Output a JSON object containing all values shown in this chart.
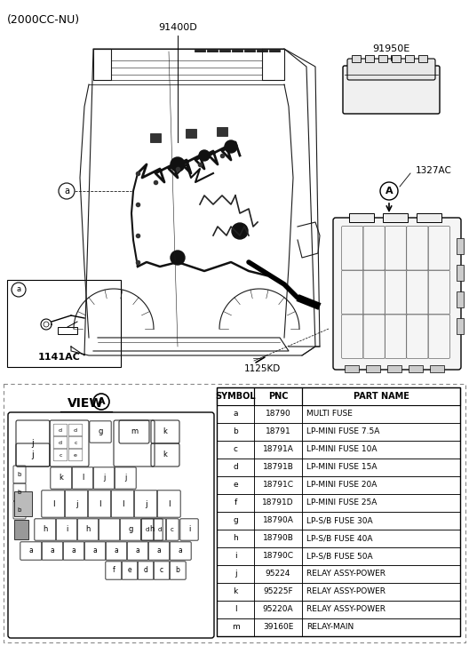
{
  "title_text": "(2000CC-NU)",
  "label_91400D": "91400D",
  "label_91950E": "91950E",
  "label_1327AC": "1327AC",
  "label_1125KD": "1125KD",
  "label_1141AC": "1141AC",
  "view_title": "VIEW",
  "table_headers": [
    "SYMBOL",
    "PNC",
    "PART NAME"
  ],
  "table_rows": [
    [
      "a",
      "18790",
      "MULTI FUSE"
    ],
    [
      "b",
      "18791",
      "LP-MINI FUSE 7.5A"
    ],
    [
      "c",
      "18791A",
      "LP-MINI FUSE 10A"
    ],
    [
      "d",
      "18791B",
      "LP-MINI FUSE 15A"
    ],
    [
      "e",
      "18791C",
      "LP-MINI FUSE 20A"
    ],
    [
      "f",
      "18791D",
      "LP-MINI FUSE 25A"
    ],
    [
      "g",
      "18790A",
      "LP-S/B FUSE 30A"
    ],
    [
      "h",
      "18790B",
      "LP-S/B FUSE 40A"
    ],
    [
      "i",
      "18790C",
      "LP-S/B FUSE 50A"
    ],
    [
      "j",
      "95224",
      "RELAY ASSY-POWER"
    ],
    [
      "k",
      "95225F",
      "RELAY ASSY-POWER"
    ],
    [
      "l",
      "95220A",
      "RELAY ASSY-POWER"
    ],
    [
      "m",
      "39160E",
      "RELAY-MAIN"
    ]
  ],
  "bg_color": "#ffffff",
  "line_color": "#000000",
  "text_color": "#000000"
}
